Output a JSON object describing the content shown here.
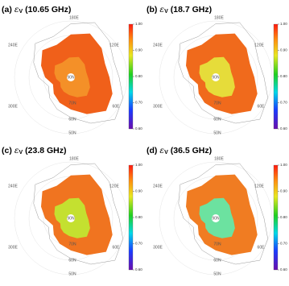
{
  "panels": [
    {
      "label": "(a)",
      "symbol": "ε",
      "subscript": "V",
      "frequency": "(10.65 GHz)"
    },
    {
      "label": "(b)",
      "symbol": "ε",
      "subscript": "V",
      "frequency": "(18.7 GHz)"
    },
    {
      "label": "(c)",
      "symbol": "ε",
      "subscript": "V",
      "frequency": "(23.8 GHz)"
    },
    {
      "label": "(d)",
      "symbol": "ε",
      "subscript": "V",
      "frequency": "(36.5 GHz)"
    }
  ],
  "map_labels": {
    "lon": [
      "180E",
      "240E",
      "120E",
      "300E",
      "60E"
    ],
    "lat": [
      "90N",
      "70N",
      "60N",
      "50N"
    ]
  },
  "colorbar": {
    "lim": [
      0.6,
      1.0
    ],
    "ticks": [
      {
        "value": 0.6,
        "label": "0.60"
      },
      {
        "value": 0.7,
        "label": "0.70"
      },
      {
        "value": 0.8,
        "label": "0.80"
      },
      {
        "value": 0.9,
        "label": "0.90"
      },
      {
        "value": 1.0,
        "label": "1.00"
      }
    ]
  }
}
